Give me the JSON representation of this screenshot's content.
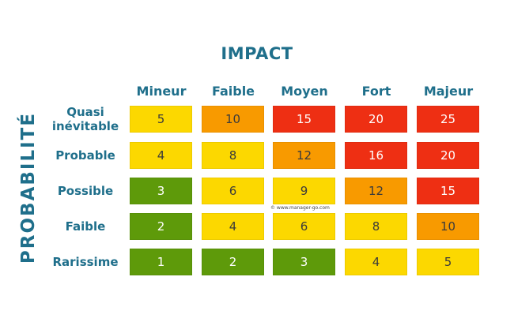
{
  "impact_title": "IMPACT",
  "probability_title": "PROBABILITÉ",
  "columns": [
    "Mineur",
    "Faible",
    "Moyen",
    "Fort",
    "Majeur"
  ],
  "rows": [
    {
      "label_line1": "Quasi",
      "label_line2": "inévitable",
      "cells": [
        "5",
        "10",
        "15",
        "20",
        "25"
      ],
      "levels": [
        "y",
        "o",
        "r",
        "r",
        "r"
      ]
    },
    {
      "label_line1": "Probable",
      "label_line2": "",
      "cells": [
        "4",
        "8",
        "12",
        "16",
        "20"
      ],
      "levels": [
        "y",
        "y",
        "o",
        "r",
        "r"
      ]
    },
    {
      "label_line1": "Possible",
      "label_line2": "",
      "cells": [
        "3",
        "6",
        "9",
        "12",
        "15"
      ],
      "levels": [
        "g",
        "y",
        "y",
        "o",
        "r"
      ]
    },
    {
      "label_line1": "Faible",
      "label_line2": "",
      "cells": [
        "2",
        "4",
        "6",
        "8",
        "10"
      ],
      "levels": [
        "g",
        "y",
        "y",
        "y",
        "o"
      ]
    },
    {
      "label_line1": "Rarissime",
      "label_line2": "",
      "cells": [
        "1",
        "2",
        "3",
        "4",
        "5"
      ],
      "levels": [
        "g",
        "g",
        "g",
        "y",
        "y"
      ]
    }
  ],
  "level_colors": {
    "y": "#fcd800",
    "o": "#f89a00",
    "r": "#ee2f13",
    "g": "#5e9a0a"
  },
  "watermark": "© www.manager-go.com"
}
